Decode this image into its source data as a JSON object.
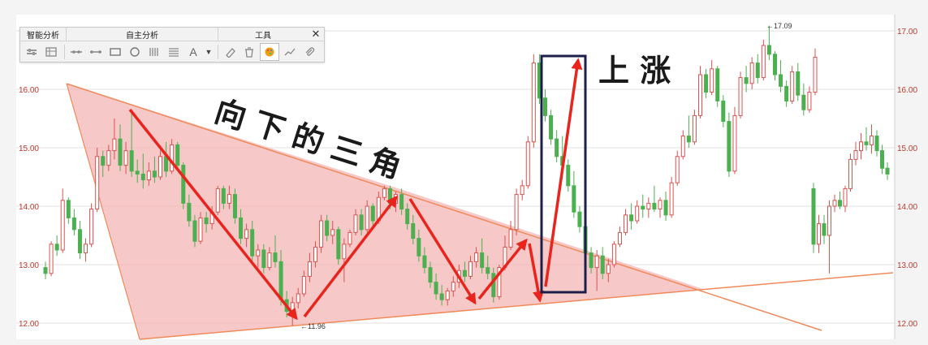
{
  "toolbar": {
    "tab_analysis": "智能分析",
    "tab_custom": "自主分析",
    "tab_tools": "工具",
    "close_glyph": "✕",
    "text_tool_glyph": "A",
    "dropdown_glyph": "▼"
  },
  "colors": {
    "up_candle": "#d9534f",
    "down_candle": "#4caf50",
    "triangle_fill": "#f4b6b6",
    "triangle_line": "#ef8a5a",
    "arrow": "#e8241d",
    "box": "#1c1f4a",
    "axis_text": "#c0392b",
    "grid": "#e2e2e2",
    "background": "#f4f4f4"
  },
  "chart_data": {
    "type": "candlestick",
    "title": "",
    "xlabel": "",
    "ylabel": "",
    "ylim": [
      11.75,
      17.25
    ],
    "yticks_left": [
      "16.00",
      "15.00",
      "14.00",
      "13.00",
      "12.00"
    ],
    "yticks_right": [
      "17.00",
      "16.00",
      "15.00",
      "14.00",
      "13.00",
      "12.00"
    ],
    "grid": true,
    "annotations": {
      "pattern_label": "向下的三角",
      "breakout_label": "上 涨",
      "low_marker": "11.96",
      "high_marker": "17.09"
    },
    "candles": [
      [
        12.95,
        13.05,
        12.75,
        12.85
      ],
      [
        12.85,
        13.4,
        12.8,
        13.35
      ],
      [
        13.35,
        13.5,
        13.15,
        13.25
      ],
      [
        13.25,
        14.3,
        13.2,
        14.1
      ],
      [
        14.1,
        14.15,
        13.7,
        13.8
      ],
      [
        13.8,
        13.95,
        13.5,
        13.6
      ],
      [
        13.6,
        13.75,
        13.1,
        13.2
      ],
      [
        13.2,
        13.45,
        13.05,
        13.35
      ],
      [
        13.35,
        14.05,
        13.3,
        13.95
      ],
      [
        13.95,
        15.0,
        13.9,
        14.85
      ],
      [
        14.85,
        14.95,
        14.5,
        14.7
      ],
      [
        14.7,
        15.05,
        14.6,
        14.95
      ],
      [
        14.95,
        15.5,
        14.8,
        15.15
      ],
      [
        15.15,
        15.4,
        14.6,
        14.7
      ],
      [
        14.7,
        15.1,
        14.55,
        14.95
      ],
      [
        14.95,
        15.6,
        14.5,
        14.6
      ],
      [
        14.6,
        14.8,
        14.4,
        14.55
      ],
      [
        14.55,
        14.9,
        14.3,
        14.45
      ],
      [
        14.45,
        14.75,
        14.35,
        14.6
      ],
      [
        14.6,
        14.85,
        14.4,
        14.5
      ],
      [
        14.5,
        14.95,
        14.45,
        14.85
      ],
      [
        14.85,
        15.1,
        14.5,
        14.6
      ],
      [
        14.6,
        15.15,
        14.55,
        15.05
      ],
      [
        15.05,
        15.1,
        14.6,
        14.7
      ],
      [
        14.7,
        14.75,
        13.95,
        14.05
      ],
      [
        14.05,
        14.2,
        13.65,
        13.75
      ],
      [
        13.75,
        13.85,
        13.3,
        13.4
      ],
      [
        13.4,
        13.9,
        13.35,
        13.8
      ],
      [
        13.8,
        13.9,
        13.55,
        13.7
      ],
      [
        13.7,
        14.0,
        13.6,
        13.9
      ],
      [
        13.9,
        14.35,
        13.85,
        14.3
      ],
      [
        14.3,
        14.35,
        13.95,
        14.05
      ],
      [
        14.05,
        14.35,
        13.95,
        14.2
      ],
      [
        14.2,
        14.3,
        13.7,
        13.8
      ],
      [
        13.8,
        13.95,
        13.35,
        13.45
      ],
      [
        13.45,
        13.7,
        13.3,
        13.6
      ],
      [
        13.6,
        13.75,
        13.05,
        13.15
      ],
      [
        13.15,
        13.35,
        12.95,
        13.25
      ],
      [
        13.25,
        13.35,
        12.85,
        12.95
      ],
      [
        12.95,
        13.3,
        12.9,
        13.2
      ],
      [
        13.2,
        13.5,
        12.95,
        13.05
      ],
      [
        13.05,
        13.25,
        12.3,
        12.4
      ],
      [
        12.4,
        12.55,
        12.1,
        12.2
      ],
      [
        12.2,
        12.45,
        11.96,
        12.35
      ],
      [
        12.35,
        12.6,
        12.25,
        12.5
      ],
      [
        12.5,
        12.9,
        12.45,
        12.8
      ],
      [
        12.8,
        13.2,
        12.7,
        13.05
      ],
      [
        13.05,
        13.4,
        12.95,
        13.3
      ],
      [
        13.3,
        13.85,
        13.2,
        13.75
      ],
      [
        13.75,
        13.85,
        13.4,
        13.5
      ],
      [
        13.5,
        13.75,
        13.35,
        13.6
      ],
      [
        13.6,
        13.65,
        13.0,
        13.1
      ],
      [
        13.1,
        13.45,
        12.7,
        13.35
      ],
      [
        13.35,
        13.6,
        13.3,
        13.55
      ],
      [
        13.55,
        13.95,
        13.5,
        13.85
      ],
      [
        13.85,
        13.95,
        13.5,
        13.6
      ],
      [
        13.6,
        14.1,
        13.55,
        14.0
      ],
      [
        14.0,
        14.05,
        13.65,
        13.75
      ],
      [
        13.75,
        14.25,
        13.7,
        14.15
      ],
      [
        14.15,
        14.35,
        14.1,
        14.3
      ],
      [
        14.3,
        14.35,
        13.95,
        14.05
      ],
      [
        14.05,
        14.25,
        13.9,
        14.2
      ],
      [
        14.2,
        14.3,
        13.85,
        13.95
      ],
      [
        13.95,
        14.05,
        13.6,
        13.7
      ],
      [
        13.7,
        13.85,
        13.35,
        13.45
      ],
      [
        13.45,
        13.6,
        13.05,
        13.15
      ],
      [
        13.15,
        13.3,
        12.85,
        12.95
      ],
      [
        12.95,
        13.05,
        12.6,
        12.7
      ],
      [
        12.7,
        12.85,
        12.4,
        12.5
      ],
      [
        12.5,
        12.65,
        12.3,
        12.4
      ],
      [
        12.4,
        12.6,
        12.3,
        12.55
      ],
      [
        12.55,
        12.8,
        12.45,
        12.7
      ],
      [
        12.7,
        13.0,
        12.6,
        12.9
      ],
      [
        12.9,
        13.05,
        12.7,
        12.8
      ],
      [
        12.8,
        13.15,
        12.75,
        13.05
      ],
      [
        13.05,
        13.3,
        12.95,
        13.2
      ],
      [
        13.2,
        13.45,
        12.85,
        12.95
      ],
      [
        12.95,
        13.15,
        12.75,
        12.85
      ],
      [
        12.85,
        12.95,
        12.35,
        12.45
      ],
      [
        12.45,
        13.0,
        12.4,
        12.95
      ],
      [
        12.95,
        13.5,
        12.9,
        13.3
      ],
      [
        13.3,
        13.75,
        13.25,
        13.6
      ],
      [
        13.6,
        14.3,
        13.5,
        14.2
      ],
      [
        14.2,
        14.45,
        14.1,
        14.35
      ],
      [
        14.35,
        15.2,
        14.3,
        15.1
      ],
      [
        15.1,
        16.6,
        15.0,
        16.45
      ],
      [
        16.45,
        16.6,
        15.75,
        15.85
      ],
      [
        15.85,
        16.0,
        15.45,
        15.55
      ],
      [
        15.55,
        15.65,
        15.05,
        15.15
      ],
      [
        15.15,
        15.3,
        14.75,
        14.85
      ],
      [
        14.85,
        15.2,
        14.55,
        14.7
      ],
      [
        14.7,
        14.8,
        14.25,
        14.35
      ],
      [
        14.35,
        14.6,
        13.8,
        13.9
      ],
      [
        13.9,
        14.0,
        13.55,
        13.65
      ],
      [
        13.65,
        13.75,
        13.1,
        13.2
      ],
      [
        13.2,
        13.3,
        12.85,
        12.95
      ],
      [
        12.95,
        13.25,
        12.55,
        13.15
      ],
      [
        13.15,
        13.3,
        12.75,
        12.85
      ],
      [
        12.85,
        13.1,
        12.7,
        13.0
      ],
      [
        13.0,
        13.4,
        12.95,
        13.35
      ],
      [
        13.35,
        13.65,
        13.3,
        13.55
      ],
      [
        13.55,
        13.95,
        13.5,
        13.85
      ],
      [
        13.85,
        14.05,
        13.6,
        13.75
      ],
      [
        13.75,
        14.1,
        13.7,
        14.0
      ],
      [
        14.0,
        14.2,
        13.8,
        13.95
      ],
      [
        13.95,
        14.15,
        13.8,
        14.05
      ],
      [
        14.05,
        14.35,
        13.9,
        13.95
      ],
      [
        13.95,
        14.15,
        13.8,
        14.1
      ],
      [
        14.1,
        14.25,
        13.75,
        13.85
      ],
      [
        13.85,
        14.5,
        13.8,
        14.4
      ],
      [
        14.4,
        14.95,
        14.35,
        14.85
      ],
      [
        14.85,
        15.3,
        14.8,
        15.2
      ],
      [
        15.2,
        15.55,
        15.0,
        15.1
      ],
      [
        15.1,
        15.65,
        15.05,
        15.55
      ],
      [
        15.55,
        16.4,
        15.5,
        16.25
      ],
      [
        16.25,
        16.35,
        15.85,
        15.95
      ],
      [
        15.95,
        16.5,
        15.9,
        16.35
      ],
      [
        16.35,
        16.4,
        15.7,
        15.8
      ],
      [
        15.8,
        15.9,
        15.35,
        15.45
      ],
      [
        15.45,
        15.6,
        14.5,
        14.6
      ],
      [
        14.6,
        15.7,
        14.55,
        15.55
      ],
      [
        15.55,
        16.3,
        15.5,
        16.2
      ],
      [
        16.2,
        16.4,
        15.95,
        16.1
      ],
      [
        16.1,
        16.55,
        16.0,
        16.45
      ],
      [
        16.45,
        16.6,
        16.1,
        16.2
      ],
      [
        16.2,
        16.85,
        16.15,
        16.75
      ],
      [
        16.75,
        17.09,
        16.5,
        16.6
      ],
      [
        16.6,
        16.65,
        16.15,
        16.25
      ],
      [
        16.25,
        16.5,
        15.95,
        16.05
      ],
      [
        16.05,
        16.15,
        15.7,
        15.8
      ],
      [
        15.8,
        16.4,
        15.75,
        16.3
      ],
      [
        16.3,
        16.45,
        15.8,
        15.9
      ],
      [
        15.9,
        16.1,
        15.55,
        15.65
      ],
      [
        15.65,
        16.05,
        15.6,
        15.95
      ],
      [
        15.95,
        16.7,
        15.9,
        16.55
      ]
    ],
    "candles_segment2_start_x": 1002,
    "candles_segment2": [
      [
        14.3,
        14.4,
        13.2,
        13.35
      ],
      [
        13.35,
        13.85,
        13.2,
        13.7
      ],
      [
        13.7,
        13.85,
        13.35,
        13.5
      ],
      [
        13.5,
        14.1,
        12.85,
        14.0
      ],
      [
        14.0,
        14.2,
        13.9,
        14.1
      ],
      [
        14.1,
        14.25,
        13.95,
        14.0
      ],
      [
        14.0,
        14.35,
        13.9,
        14.3
      ],
      [
        14.3,
        14.9,
        14.25,
        14.8
      ],
      [
        14.8,
        15.1,
        14.7,
        14.95
      ],
      [
        14.95,
        15.25,
        14.8,
        15.1
      ],
      [
        15.1,
        15.35,
        14.95,
        15.05
      ],
      [
        15.05,
        15.4,
        14.9,
        15.2
      ],
      [
        15.2,
        15.3,
        14.85,
        14.95
      ],
      [
        14.95,
        15.05,
        14.55,
        14.65
      ],
      [
        14.65,
        14.75,
        14.45,
        14.55
      ]
    ]
  }
}
